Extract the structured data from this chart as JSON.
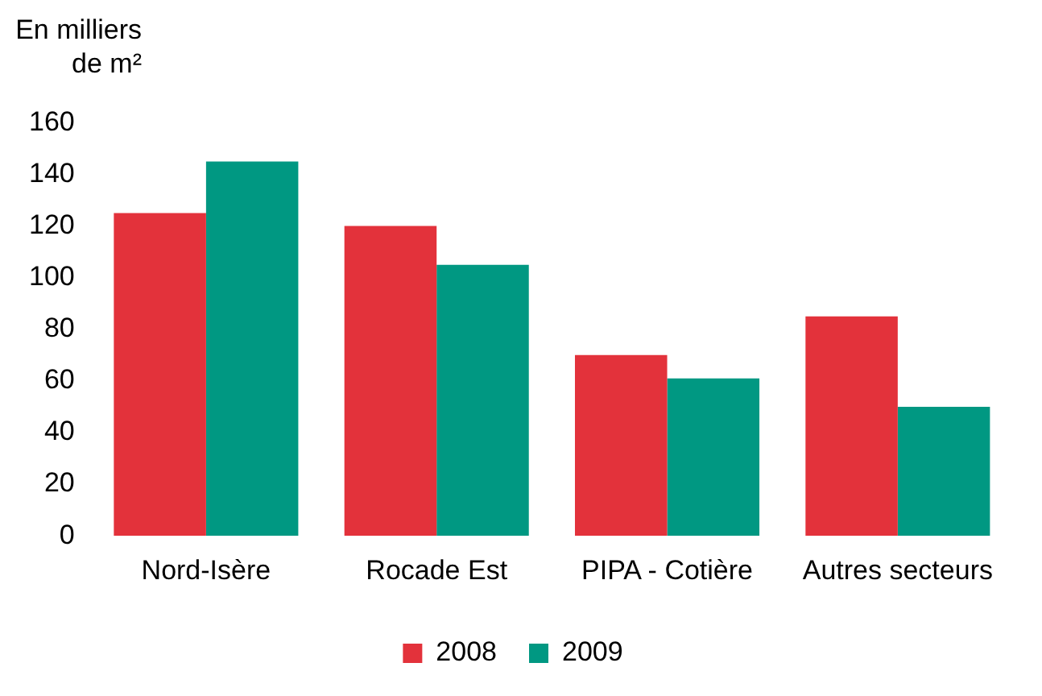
{
  "chart_data": {
    "type": "bar",
    "ylabel": "En milliers de m²",
    "categories": [
      "Nord-Isère",
      "Rocade Est",
      "PIPA - Cotière",
      "Autres secteurs"
    ],
    "series": [
      {
        "name": "2008",
        "color": "#e3323b",
        "values": [
          125,
          120,
          70,
          85
        ]
      },
      {
        "name": "2009",
        "color": "#009882",
        "values": [
          145,
          105,
          61,
          50
        ]
      }
    ],
    "ylim": [
      0,
      160
    ],
    "yticks": [
      0,
      20,
      40,
      60,
      80,
      100,
      120,
      140,
      160
    ],
    "grid": false,
    "legend": "bottom"
  }
}
